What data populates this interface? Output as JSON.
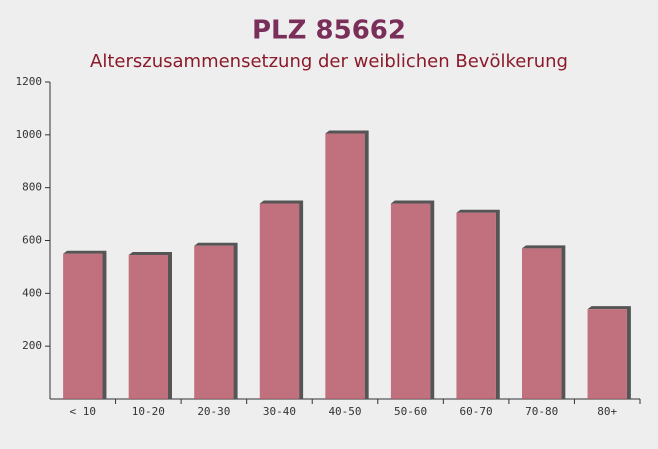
{
  "chart_data": {
    "type": "bar",
    "title": "PLZ 85662",
    "subtitle": "Alterszusammensetzung der weiblichen Bevölkerung",
    "categories": [
      "< 10",
      "10-20",
      "20-30",
      "30-40",
      "40-50",
      "50-60",
      "60-70",
      "70-80",
      "80+"
    ],
    "values": [
      550,
      545,
      580,
      740,
      1005,
      740,
      705,
      570,
      340
    ],
    "color": "#b85a6a",
    "ylim": [
      0,
      1200
    ],
    "yticks": [
      200,
      400,
      600,
      800,
      1000,
      1200
    ]
  }
}
